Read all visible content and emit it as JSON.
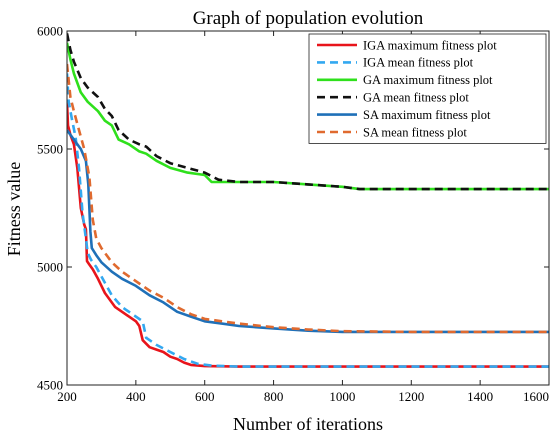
{
  "chart_data": {
    "type": "line",
    "title": "Graph of population evolution",
    "xlabel": "Number of iterations",
    "ylabel": "Fitness value",
    "xlim": [
      200,
      1600
    ],
    "ylim": [
      4500,
      6000
    ],
    "xticks": [
      200,
      400,
      600,
      800,
      1000,
      1200,
      1400,
      1600
    ],
    "yticks": [
      4500,
      5000,
      5500,
      6000
    ],
    "grid": false,
    "legend_position": "top-right",
    "series": [
      {
        "name": "IGA maximum fitness plot",
        "color": "#e8141b",
        "dash": "solid",
        "points": [
          [
            200,
            5700
          ],
          [
            203,
            5600
          ],
          [
            210,
            5560
          ],
          [
            220,
            5520
          ],
          [
            230,
            5420
          ],
          [
            240,
            5250
          ],
          [
            250,
            5180
          ],
          [
            255,
            5160
          ],
          [
            258,
            5025
          ],
          [
            265,
            5010
          ],
          [
            275,
            4990
          ],
          [
            290,
            4950
          ],
          [
            310,
            4890
          ],
          [
            340,
            4830
          ],
          [
            370,
            4800
          ],
          [
            400,
            4770
          ],
          [
            410,
            4750
          ],
          [
            420,
            4690
          ],
          [
            440,
            4660
          ],
          [
            460,
            4650
          ],
          [
            480,
            4640
          ],
          [
            500,
            4620
          ],
          [
            520,
            4610
          ],
          [
            540,
            4595
          ],
          [
            560,
            4585
          ],
          [
            600,
            4580
          ],
          [
            700,
            4578
          ],
          [
            900,
            4578
          ],
          [
            1200,
            4578
          ],
          [
            1600,
            4578
          ]
        ]
      },
      {
        "name": "IGA mean fitness plot",
        "color": "#33a8f0",
        "dash": "8,5",
        "points": [
          [
            200,
            5820
          ],
          [
            205,
            5700
          ],
          [
            215,
            5620
          ],
          [
            225,
            5550
          ],
          [
            235,
            5420
          ],
          [
            245,
            5230
          ],
          [
            255,
            5120
          ],
          [
            260,
            5060
          ],
          [
            270,
            5030
          ],
          [
            285,
            5000
          ],
          [
            300,
            4960
          ],
          [
            330,
            4880
          ],
          [
            360,
            4830
          ],
          [
            390,
            4800
          ],
          [
            420,
            4770
          ],
          [
            430,
            4700
          ],
          [
            460,
            4670
          ],
          [
            500,
            4640
          ],
          [
            540,
            4610
          ],
          [
            580,
            4590
          ],
          [
            620,
            4582
          ],
          [
            700,
            4578
          ],
          [
            900,
            4578
          ],
          [
            1200,
            4578
          ],
          [
            1600,
            4578
          ]
        ]
      },
      {
        "name": "GA maximum fitness plot",
        "color": "#2fe01c",
        "dash": "solid",
        "points": [
          [
            200,
            5950
          ],
          [
            210,
            5880
          ],
          [
            220,
            5820
          ],
          [
            240,
            5740
          ],
          [
            260,
            5700
          ],
          [
            290,
            5660
          ],
          [
            310,
            5620
          ],
          [
            330,
            5600
          ],
          [
            350,
            5540
          ],
          [
            380,
            5520
          ],
          [
            410,
            5490
          ],
          [
            430,
            5480
          ],
          [
            460,
            5450
          ],
          [
            500,
            5420
          ],
          [
            550,
            5400
          ],
          [
            600,
            5390
          ],
          [
            620,
            5360
          ],
          [
            700,
            5360
          ],
          [
            800,
            5360
          ],
          [
            900,
            5350
          ],
          [
            1000,
            5340
          ],
          [
            1050,
            5330
          ],
          [
            1200,
            5330
          ],
          [
            1400,
            5330
          ],
          [
            1600,
            5330
          ]
        ]
      },
      {
        "name": "GA mean fitness plot",
        "color": "#111111",
        "dash": "8,5",
        "points": [
          [
            200,
            5990
          ],
          [
            210,
            5920
          ],
          [
            220,
            5870
          ],
          [
            240,
            5800
          ],
          [
            260,
            5760
          ],
          [
            290,
            5720
          ],
          [
            310,
            5670
          ],
          [
            330,
            5640
          ],
          [
            350,
            5580
          ],
          [
            380,
            5540
          ],
          [
            410,
            5520
          ],
          [
            430,
            5510
          ],
          [
            460,
            5470
          ],
          [
            500,
            5440
          ],
          [
            550,
            5420
          ],
          [
            600,
            5400
          ],
          [
            640,
            5370
          ],
          [
            700,
            5360
          ],
          [
            800,
            5360
          ],
          [
            900,
            5350
          ],
          [
            1000,
            5340
          ],
          [
            1050,
            5330
          ],
          [
            1200,
            5330
          ],
          [
            1400,
            5330
          ],
          [
            1600,
            5330
          ]
        ]
      },
      {
        "name": "SA maximum fitness plot",
        "color": "#1f70b8",
        "dash": "solid",
        "points": [
          [
            200,
            5580
          ],
          [
            210,
            5560
          ],
          [
            220,
            5540
          ],
          [
            240,
            5500
          ],
          [
            255,
            5450
          ],
          [
            262,
            5350
          ],
          [
            268,
            5150
          ],
          [
            272,
            5080
          ],
          [
            285,
            5050
          ],
          [
            300,
            5020
          ],
          [
            330,
            4980
          ],
          [
            360,
            4950
          ],
          [
            400,
            4920
          ],
          [
            440,
            4880
          ],
          [
            480,
            4850
          ],
          [
            520,
            4810
          ],
          [
            560,
            4790
          ],
          [
            600,
            4770
          ],
          [
            650,
            4760
          ],
          [
            700,
            4750
          ],
          [
            800,
            4740
          ],
          [
            900,
            4730
          ],
          [
            1000,
            4725
          ],
          [
            1200,
            4725
          ],
          [
            1600,
            4725
          ]
        ]
      },
      {
        "name": "SA mean fitness plot",
        "color": "#e06a2f",
        "dash": "8,5",
        "points": [
          [
            200,
            5860
          ],
          [
            210,
            5720
          ],
          [
            220,
            5660
          ],
          [
            235,
            5580
          ],
          [
            250,
            5500
          ],
          [
            265,
            5380
          ],
          [
            275,
            5200
          ],
          [
            285,
            5120
          ],
          [
            300,
            5080
          ],
          [
            330,
            5020
          ],
          [
            360,
            4980
          ],
          [
            400,
            4940
          ],
          [
            440,
            4900
          ],
          [
            480,
            4870
          ],
          [
            520,
            4830
          ],
          [
            560,
            4800
          ],
          [
            600,
            4780
          ],
          [
            650,
            4770
          ],
          [
            700,
            4760
          ],
          [
            800,
            4745
          ],
          [
            900,
            4735
          ],
          [
            1000,
            4728
          ],
          [
            1200,
            4725
          ],
          [
            1600,
            4725
          ]
        ]
      }
    ]
  }
}
